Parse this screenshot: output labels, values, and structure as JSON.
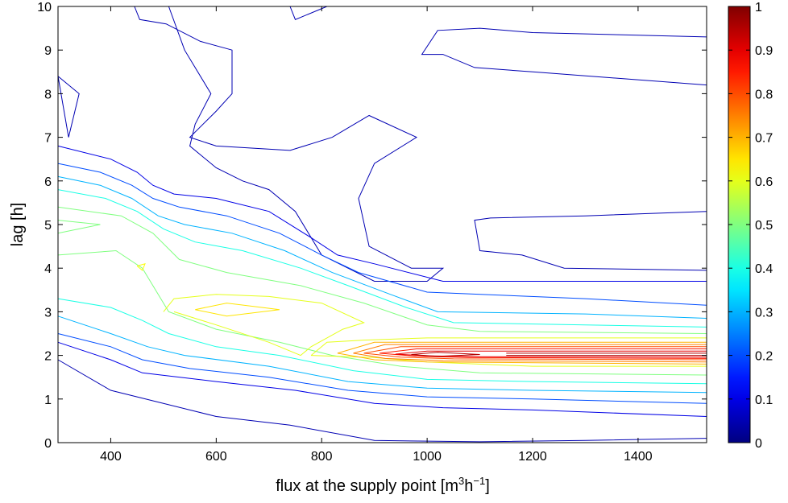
{
  "chart_data": {
    "type": "contour",
    "xlabel": "flux at the supply point [m3h−1]",
    "xlabel_parts": {
      "base": "flux at the supply point [m",
      "sup1": "3",
      "mid": "h",
      "sup2": "−1",
      "end": "]"
    },
    "ylabel": "lag [h]",
    "xlim": [
      300,
      1530
    ],
    "ylim": [
      0,
      10
    ],
    "x_ticks": [
      400,
      600,
      800,
      1000,
      1200,
      1400
    ],
    "x_tick_labels": [
      "400",
      "600",
      "800",
      "1000",
      "1200",
      "1400"
    ],
    "y_ticks": [
      0,
      1,
      2,
      3,
      4,
      5,
      6,
      7,
      8,
      9,
      10
    ],
    "y_tick_labels": [
      "0",
      "1",
      "2",
      "3",
      "4",
      "5",
      "6",
      "7",
      "8",
      "9",
      "10"
    ],
    "colorbar": {
      "colormap": "jet",
      "range": [
        0,
        1
      ],
      "tick_values": [
        0,
        0.1,
        0.2,
        0.3,
        0.4,
        0.5,
        0.6,
        0.7,
        0.8,
        0.9,
        1
      ],
      "tick_labels": [
        "0",
        "0.1",
        "0.2",
        "0.3",
        "0.4",
        "0.5",
        "0.6",
        "0.7",
        "0.8",
        "0.9",
        "1"
      ]
    },
    "grid": false,
    "contours": [
      {
        "level": 0.05,
        "points": [
          [
            300,
            8.4
          ],
          [
            320,
            7.0
          ],
          [
            340,
            8.0
          ],
          [
            300,
            8.4
          ]
        ]
      },
      {
        "level": 0.05,
        "points": [
          [
            445,
            10
          ],
          [
            455,
            9.7
          ],
          [
            505,
            9.6
          ],
          [
            570,
            9.2
          ],
          [
            630,
            9.0
          ],
          [
            630,
            8.0
          ],
          [
            600,
            7.6
          ],
          [
            550,
            7.0
          ],
          [
            600,
            6.8
          ],
          [
            740,
            6.7
          ],
          [
            820,
            7.0
          ],
          [
            890,
            7.5
          ],
          [
            980,
            7.0
          ],
          [
            900,
            6.4
          ],
          [
            870,
            5.6
          ],
          [
            890,
            4.5
          ],
          [
            970,
            4.0
          ],
          [
            1030,
            4.0
          ],
          [
            1000,
            3.7
          ],
          [
            900,
            3.7
          ],
          [
            800,
            4.3
          ],
          [
            750,
            5.3
          ],
          [
            700,
            5.8
          ],
          [
            650,
            6.0
          ],
          [
            600,
            6.3
          ],
          [
            550,
            6.8
          ],
          [
            560,
            7.3
          ],
          [
            590,
            8.0
          ],
          [
            540,
            9.0
          ],
          [
            510,
            10
          ]
        ]
      },
      {
        "level": 0.05,
        "points": [
          [
            740,
            10
          ],
          [
            750,
            9.7
          ],
          [
            810,
            10
          ]
        ]
      },
      {
        "level": 0.05,
        "points": [
          [
            1530,
            9.3
          ],
          [
            1200,
            9.4
          ],
          [
            1100,
            9.5
          ],
          [
            1020,
            9.45
          ],
          [
            990,
            8.9
          ],
          [
            1030,
            8.9
          ],
          [
            1090,
            8.6
          ],
          [
            1200,
            8.5
          ],
          [
            1530,
            8.2
          ]
        ]
      },
      {
        "level": 0.05,
        "points": [
          [
            1530,
            5.3
          ],
          [
            1300,
            5.2
          ],
          [
            1120,
            5.15
          ],
          [
            1090,
            5.1
          ],
          [
            1100,
            4.4
          ],
          [
            1180,
            4.3
          ],
          [
            1260,
            4.0
          ],
          [
            1530,
            3.95
          ]
        ]
      },
      {
        "level": 0.05,
        "points": [
          [
            1530,
            0.1
          ],
          [
            1300,
            0.05
          ],
          [
            1100,
            0.02
          ],
          [
            900,
            0.05
          ],
          [
            740,
            0.4
          ],
          [
            600,
            0.6
          ],
          [
            400,
            1.2
          ],
          [
            300,
            1.9
          ]
        ]
      },
      {
        "level": 0.1,
        "points": [
          [
            300,
            6.8
          ],
          [
            400,
            6.5
          ],
          [
            450,
            6.2
          ],
          [
            480,
            5.9
          ],
          [
            520,
            5.7
          ],
          [
            600,
            5.6
          ],
          [
            700,
            5.3
          ],
          [
            780,
            4.7
          ],
          [
            830,
            4.3
          ],
          [
            900,
            4.1
          ],
          [
            1030,
            3.7
          ],
          [
            1530,
            3.7
          ]
        ]
      },
      {
        "level": 0.1,
        "points": [
          [
            300,
            2.3
          ],
          [
            400,
            1.9
          ],
          [
            460,
            1.6
          ],
          [
            600,
            1.4
          ],
          [
            750,
            1.2
          ],
          [
            900,
            0.9
          ],
          [
            1030,
            0.8
          ],
          [
            1200,
            0.75
          ],
          [
            1530,
            0.6
          ]
        ]
      },
      {
        "level": 0.2,
        "points": [
          [
            300,
            6.4
          ],
          [
            380,
            6.2
          ],
          [
            440,
            5.9
          ],
          [
            480,
            5.6
          ],
          [
            530,
            5.4
          ],
          [
            620,
            5.2
          ],
          [
            720,
            4.8
          ],
          [
            800,
            4.3
          ],
          [
            870,
            3.9
          ],
          [
            1000,
            3.45
          ],
          [
            1300,
            3.3
          ],
          [
            1530,
            3.15
          ]
        ]
      },
      {
        "level": 0.2,
        "points": [
          [
            300,
            2.5
          ],
          [
            400,
            2.2
          ],
          [
            460,
            1.9
          ],
          [
            550,
            1.7
          ],
          [
            700,
            1.5
          ],
          [
            850,
            1.2
          ],
          [
            1000,
            1.05
          ],
          [
            1200,
            1.0
          ],
          [
            1530,
            0.9
          ]
        ]
      },
      {
        "level": 0.3,
        "points": [
          [
            300,
            6.1
          ],
          [
            380,
            5.9
          ],
          [
            440,
            5.6
          ],
          [
            490,
            5.2
          ],
          [
            540,
            5.0
          ],
          [
            630,
            4.8
          ],
          [
            730,
            4.4
          ],
          [
            820,
            3.9
          ],
          [
            930,
            3.4
          ],
          [
            1020,
            3.0
          ],
          [
            1300,
            2.95
          ],
          [
            1530,
            2.85
          ]
        ]
      },
      {
        "level": 0.3,
        "points": [
          [
            300,
            2.9
          ],
          [
            400,
            2.5
          ],
          [
            470,
            2.2
          ],
          [
            540,
            2.0
          ],
          [
            700,
            1.75
          ],
          [
            850,
            1.4
          ],
          [
            1000,
            1.25
          ],
          [
            1200,
            1.2
          ],
          [
            1530,
            1.15
          ]
        ]
      },
      {
        "level": 0.4,
        "points": [
          [
            300,
            5.8
          ],
          [
            390,
            5.6
          ],
          [
            450,
            5.3
          ],
          [
            500,
            4.9
          ],
          [
            560,
            4.6
          ],
          [
            650,
            4.4
          ],
          [
            760,
            4.0
          ],
          [
            850,
            3.6
          ],
          [
            960,
            3.1
          ],
          [
            1050,
            2.75
          ],
          [
            1300,
            2.7
          ],
          [
            1530,
            2.65
          ]
        ]
      },
      {
        "level": 0.4,
        "points": [
          [
            300,
            3.3
          ],
          [
            400,
            3.1
          ],
          [
            460,
            2.8
          ],
          [
            510,
            2.5
          ],
          [
            600,
            2.2
          ],
          [
            720,
            2.0
          ],
          [
            860,
            1.65
          ],
          [
            1000,
            1.45
          ],
          [
            1200,
            1.4
          ],
          [
            1530,
            1.35
          ]
        ]
      },
      {
        "level": 0.5,
        "points": [
          [
            300,
            5.1
          ],
          [
            380,
            5.0
          ],
          [
            300,
            4.8
          ]
        ]
      },
      {
        "level": 0.5,
        "points": [
          [
            300,
            4.3
          ],
          [
            410,
            4.4
          ],
          [
            460,
            4.0
          ],
          [
            510,
            3.0
          ],
          [
            600,
            2.6
          ],
          [
            720,
            2.3
          ],
          [
            820,
            2.0
          ],
          [
            950,
            1.75
          ],
          [
            1100,
            1.6
          ],
          [
            1530,
            1.55
          ]
        ]
      },
      {
        "level": 0.5,
        "points": [
          [
            300,
            5.4
          ],
          [
            420,
            5.2
          ],
          [
            480,
            4.8
          ],
          [
            530,
            4.2
          ],
          [
            620,
            3.9
          ],
          [
            760,
            3.6
          ],
          [
            880,
            3.2
          ],
          [
            1000,
            2.7
          ],
          [
            1100,
            2.55
          ],
          [
            1530,
            2.5
          ]
        ]
      },
      {
        "level": 0.6,
        "points": [
          [
            780,
            2.0
          ],
          [
            810,
            2.3
          ],
          [
            880,
            2.35
          ],
          [
            1000,
            2.4
          ],
          [
            1530,
            2.4
          ]
        ]
      },
      {
        "level": 0.6,
        "points": [
          [
            500,
            3.0
          ],
          [
            520,
            3.3
          ],
          [
            600,
            3.4
          ],
          [
            700,
            3.35
          ],
          [
            800,
            3.2
          ],
          [
            880,
            2.75
          ],
          [
            840,
            2.6
          ],
          [
            780,
            2.2
          ],
          [
            760,
            2.0
          ],
          [
            700,
            2.3
          ],
          [
            600,
            2.7
          ],
          [
            520,
            3.0
          ]
        ]
      },
      {
        "level": 0.6,
        "points": [
          [
            1530,
            1.75
          ],
          [
            1200,
            1.75
          ],
          [
            1000,
            1.85
          ],
          [
            900,
            1.95
          ],
          [
            780,
            2.0
          ]
        ]
      },
      {
        "level": 0.65,
        "points": [
          [
            560,
            3.05
          ],
          [
            620,
            3.2
          ],
          [
            720,
            3.05
          ],
          [
            620,
            2.9
          ],
          [
            560,
            3.05
          ]
        ]
      },
      {
        "level": 0.7,
        "points": [
          [
            830,
            2.05
          ],
          [
            900,
            2.3
          ],
          [
            1000,
            2.3
          ],
          [
            1530,
            2.3
          ]
        ]
      },
      {
        "level": 0.7,
        "points": [
          [
            830,
            2.05
          ],
          [
            900,
            1.9
          ],
          [
            1000,
            1.85
          ],
          [
            1530,
            1.8
          ]
        ]
      },
      {
        "level": 0.75,
        "points": [
          [
            860,
            2.05
          ],
          [
            920,
            2.25
          ],
          [
            1030,
            2.25
          ],
          [
            1530,
            2.25
          ]
        ]
      },
      {
        "level": 0.75,
        "points": [
          [
            860,
            2.05
          ],
          [
            920,
            1.93
          ],
          [
            1030,
            1.88
          ],
          [
            1530,
            1.85
          ]
        ]
      },
      {
        "level": 0.8,
        "points": [
          [
            880,
            2.05
          ],
          [
            950,
            2.2
          ],
          [
            1050,
            2.2
          ],
          [
            1530,
            2.2
          ]
        ]
      },
      {
        "level": 0.8,
        "points": [
          [
            880,
            2.05
          ],
          [
            950,
            1.96
          ],
          [
            1050,
            1.92
          ],
          [
            1530,
            1.9
          ]
        ]
      },
      {
        "level": 0.85,
        "points": [
          [
            910,
            2.05
          ],
          [
            980,
            2.15
          ],
          [
            1080,
            2.15
          ],
          [
            1530,
            2.15
          ]
        ]
      },
      {
        "level": 0.85,
        "points": [
          [
            910,
            2.05
          ],
          [
            980,
            1.98
          ],
          [
            1080,
            1.95
          ],
          [
            1530,
            1.93
          ]
        ]
      },
      {
        "level": 0.9,
        "points": [
          [
            940,
            2.03
          ],
          [
            1000,
            2.1
          ],
          [
            1100,
            2.1
          ],
          [
            1530,
            2.1
          ]
        ]
      },
      {
        "level": 0.9,
        "points": [
          [
            940,
            2.03
          ],
          [
            1000,
            1.99
          ],
          [
            1100,
            1.97
          ],
          [
            1530,
            1.96
          ]
        ]
      },
      {
        "level": 0.95,
        "points": [
          [
            970,
            2.02
          ],
          [
            1020,
            2.07
          ],
          [
            1100,
            2.02
          ],
          [
            1020,
            1.98
          ],
          [
            970,
            2.02
          ]
        ]
      },
      {
        "level": 0.95,
        "points": [
          [
            1150,
            2.05
          ],
          [
            1530,
            2.05
          ],
          [
            1530,
            2.0
          ],
          [
            1150,
            2.0
          ]
        ]
      },
      {
        "level": 0.62,
        "points": [
          [
            450,
            4.05
          ],
          [
            460,
            3.95
          ],
          [
            465,
            4.1
          ],
          [
            450,
            4.05
          ]
        ]
      }
    ]
  }
}
